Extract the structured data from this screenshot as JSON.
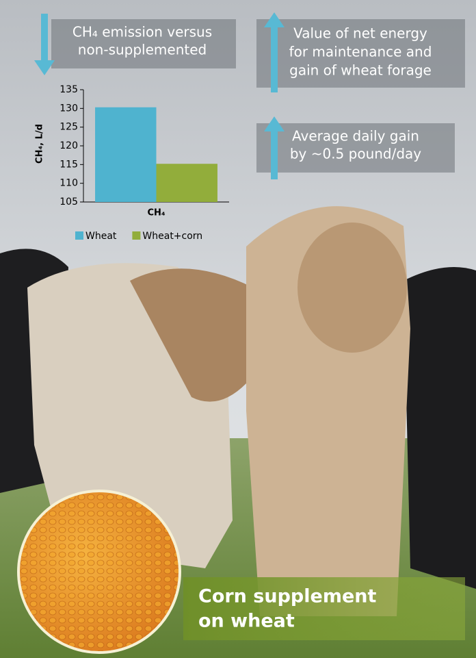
{
  "chart_data": {
    "type": "bar",
    "y_label": "CH₄, L/d",
    "categories": [
      "CH₄"
    ],
    "series": [
      {
        "name": "Wheat",
        "color": "#4fb3cf",
        "values": [
          130.3
        ]
      },
      {
        "name": "Wheat+corn",
        "color": "#92ad3b",
        "values": [
          115.2
        ]
      }
    ],
    "ylim": [
      105,
      135
    ],
    "yticks": [
      105,
      110,
      115,
      120,
      125,
      130,
      135
    ]
  },
  "callouts": [
    {
      "direction": "down",
      "lines": [
        "CH₄ emission versus",
        "non-supplemented"
      ]
    },
    {
      "direction": "up",
      "lines": [
        "Value of net energy",
        "for maintenance and",
        "gain of wheat forage"
      ]
    },
    {
      "direction": "up",
      "lines": [
        "Average daily gain",
        "by ~0.5 pound/day"
      ]
    }
  ],
  "banner": {
    "lines": [
      "Corn supplement",
      "on wheat"
    ]
  }
}
